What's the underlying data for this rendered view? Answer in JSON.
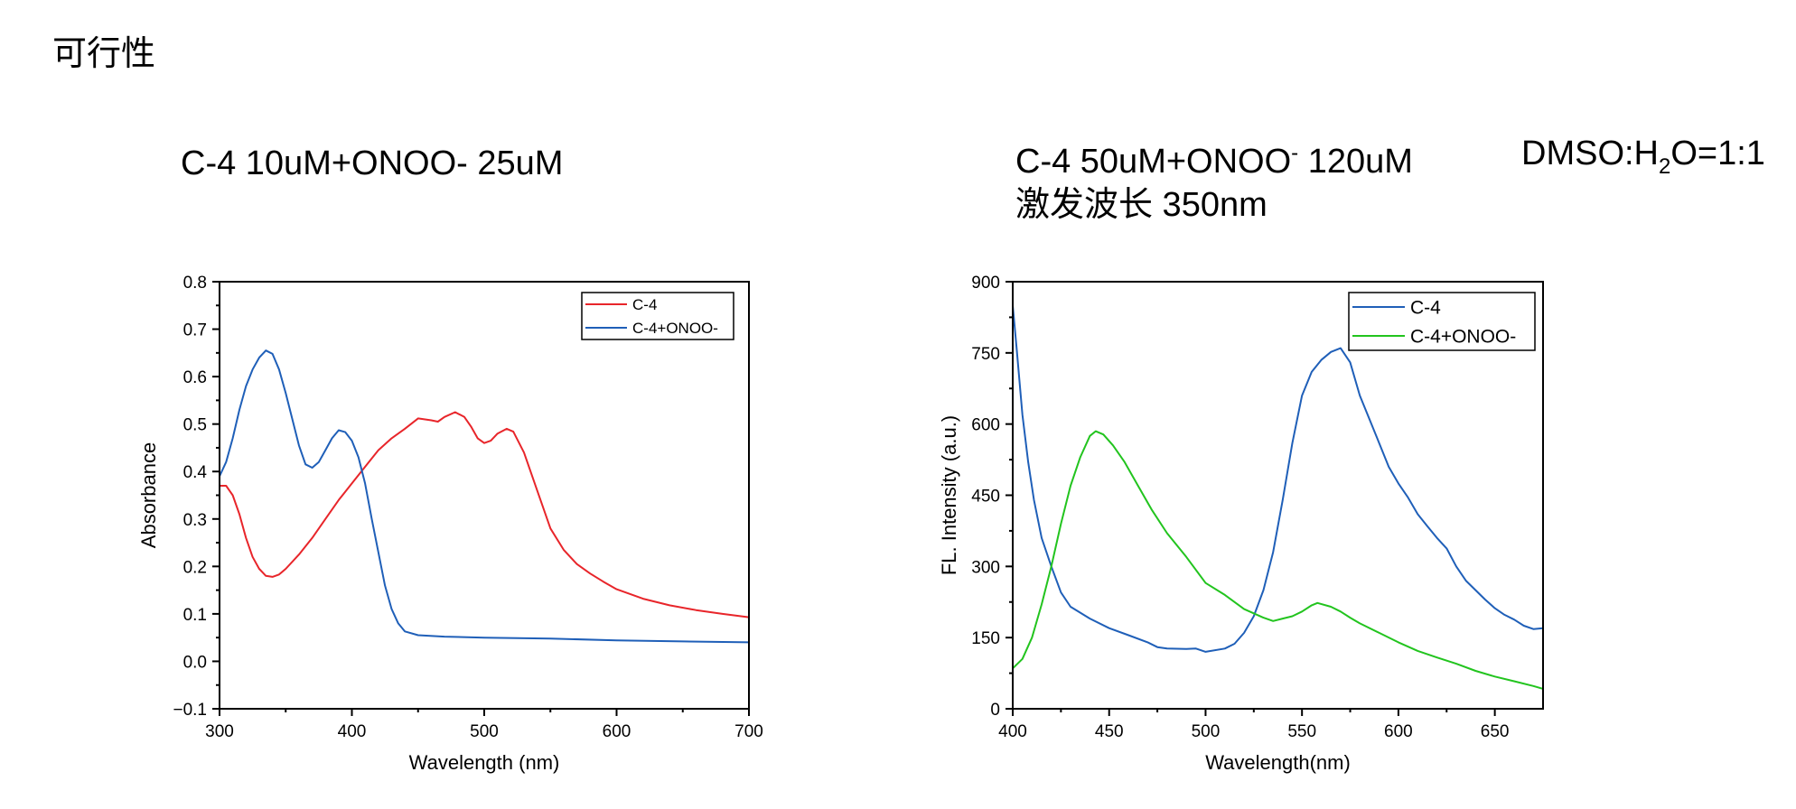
{
  "page": {
    "title": "可行性",
    "left_heading": "C-4 10uM+ONOO- 25uM",
    "right_heading": {
      "part1": "C-4 50uM+ONOO",
      "sup": "-",
      "part2": " 120uM",
      "line2": "激发波长 350nm"
    },
    "solvent": {
      "prefix": "DMSO:H",
      "sub": "2",
      "suffix": "O=1:1"
    }
  },
  "colors": {
    "red": "#e8252a",
    "blue": "#1f5fb8",
    "green": "#22c41e"
  },
  "chart_data": [
    {
      "type": "line",
      "xlabel": "Wavelength (nm)",
      "ylabel": "Absorbance",
      "xlim": [
        300,
        700
      ],
      "ylim": [
        -0.1,
        0.8
      ],
      "xticks": [
        300,
        400,
        500,
        600,
        700
      ],
      "xtick_labels": [
        "300",
        "400",
        "500",
        "600",
        "700"
      ],
      "yticks": [
        -0.1,
        0.0,
        0.1,
        0.2,
        0.3,
        0.4,
        0.5,
        0.6,
        0.7,
        0.8
      ],
      "ytick_labels": [
        "−0.1",
        "0.0",
        "0.1",
        "0.2",
        "0.3",
        "0.4",
        "0.5",
        "0.6",
        "0.7",
        "0.8"
      ],
      "legend_position": "top-right",
      "series": [
        {
          "name": "C-4",
          "color": "#e8252a",
          "points": [
            [
              300,
              0.37
            ],
            [
              305,
              0.37
            ],
            [
              310,
              0.35
            ],
            [
              315,
              0.31
            ],
            [
              320,
              0.26
            ],
            [
              325,
              0.22
            ],
            [
              330,
              0.195
            ],
            [
              335,
              0.18
            ],
            [
              340,
              0.178
            ],
            [
              345,
              0.183
            ],
            [
              350,
              0.195
            ],
            [
              360,
              0.225
            ],
            [
              370,
              0.26
            ],
            [
              380,
              0.3
            ],
            [
              390,
              0.34
            ],
            [
              400,
              0.375
            ],
            [
              410,
              0.41
            ],
            [
              420,
              0.445
            ],
            [
              430,
              0.47
            ],
            [
              440,
              0.49
            ],
            [
              450,
              0.512
            ],
            [
              460,
              0.508
            ],
            [
              465,
              0.505
            ],
            [
              470,
              0.515
            ],
            [
              478,
              0.525
            ],
            [
              485,
              0.515
            ],
            [
              490,
              0.495
            ],
            [
              495,
              0.47
            ],
            [
              500,
              0.46
            ],
            [
              505,
              0.465
            ],
            [
              510,
              0.48
            ],
            [
              517,
              0.49
            ],
            [
              522,
              0.484
            ],
            [
              530,
              0.44
            ],
            [
              540,
              0.36
            ],
            [
              550,
              0.28
            ],
            [
              560,
              0.235
            ],
            [
              570,
              0.205
            ],
            [
              580,
              0.185
            ],
            [
              590,
              0.168
            ],
            [
              600,
              0.152
            ],
            [
              620,
              0.132
            ],
            [
              640,
              0.118
            ],
            [
              660,
              0.108
            ],
            [
              680,
              0.1
            ],
            [
              700,
              0.093
            ]
          ]
        },
        {
          "name": "C-4+ONOO-",
          "color": "#1f5fb8",
          "points": [
            [
              300,
              0.39
            ],
            [
              305,
              0.42
            ],
            [
              310,
              0.47
            ],
            [
              315,
              0.53
            ],
            [
              320,
              0.58
            ],
            [
              325,
              0.615
            ],
            [
              330,
              0.64
            ],
            [
              335,
              0.655
            ],
            [
              340,
              0.648
            ],
            [
              345,
              0.615
            ],
            [
              350,
              0.565
            ],
            [
              355,
              0.51
            ],
            [
              360,
              0.455
            ],
            [
              365,
              0.415
            ],
            [
              370,
              0.408
            ],
            [
              375,
              0.42
            ],
            [
              380,
              0.445
            ],
            [
              385,
              0.47
            ],
            [
              390,
              0.487
            ],
            [
              395,
              0.483
            ],
            [
              400,
              0.465
            ],
            [
              405,
              0.43
            ],
            [
              410,
              0.375
            ],
            [
              415,
              0.3
            ],
            [
              420,
              0.23
            ],
            [
              425,
              0.16
            ],
            [
              430,
              0.11
            ],
            [
              435,
              0.08
            ],
            [
              440,
              0.063
            ],
            [
              450,
              0.055
            ],
            [
              470,
              0.052
            ],
            [
              500,
              0.05
            ],
            [
              550,
              0.048
            ],
            [
              600,
              0.044
            ],
            [
              650,
              0.042
            ],
            [
              700,
              0.04
            ]
          ]
        }
      ]
    },
    {
      "type": "line",
      "xlabel": "Wavelength(nm)",
      "ylabel": "FL. Intensity (a.u.)",
      "xlim": [
        400,
        675
      ],
      "ylim": [
        0,
        900
      ],
      "xticks": [
        400,
        450,
        500,
        550,
        600,
        650
      ],
      "xtick_labels": [
        "400",
        "450",
        "500",
        "550",
        "600",
        "650"
      ],
      "yticks": [
        0,
        150,
        300,
        450,
        600,
        750,
        900
      ],
      "ytick_labels": [
        "0",
        "150",
        "300",
        "450",
        "600",
        "750",
        "900"
      ],
      "legend_position": "top-right",
      "series": [
        {
          "name": "C-4",
          "color": "#1f5fb8",
          "points": [
            [
              400,
              850
            ],
            [
              402,
              760
            ],
            [
              405,
              620
            ],
            [
              408,
              520
            ],
            [
              411,
              440
            ],
            [
              415,
              360
            ],
            [
              420,
              300
            ],
            [
              425,
              245
            ],
            [
              430,
              215
            ],
            [
              440,
              190
            ],
            [
              450,
              170
            ],
            [
              460,
              155
            ],
            [
              470,
              140
            ],
            [
              475,
              130
            ],
            [
              480,
              127
            ],
            [
              490,
              126
            ],
            [
              495,
              127
            ],
            [
              500,
              120
            ],
            [
              510,
              127
            ],
            [
              515,
              137
            ],
            [
              520,
              160
            ],
            [
              525,
              195
            ],
            [
              530,
              250
            ],
            [
              535,
              330
            ],
            [
              540,
              440
            ],
            [
              545,
              560
            ],
            [
              550,
              660
            ],
            [
              555,
              710
            ],
            [
              560,
              735
            ],
            [
              565,
              752
            ],
            [
              570,
              760
            ],
            [
              575,
              730
            ],
            [
              580,
              660
            ],
            [
              585,
              610
            ],
            [
              590,
              560
            ],
            [
              595,
              510
            ],
            [
              600,
              475
            ],
            [
              605,
              445
            ],
            [
              610,
              410
            ],
            [
              615,
              385
            ],
            [
              620,
              360
            ],
            [
              625,
              338
            ],
            [
              630,
              300
            ],
            [
              635,
              270
            ],
            [
              640,
              250
            ],
            [
              645,
              230
            ],
            [
              650,
              212
            ],
            [
              655,
              198
            ],
            [
              660,
              188
            ],
            [
              665,
              175
            ],
            [
              670,
              168
            ],
            [
              675,
              170
            ]
          ]
        },
        {
          "name": "C-4+ONOO-",
          "color": "#22c41e",
          "points": [
            [
              400,
              85
            ],
            [
              405,
              105
            ],
            [
              410,
              150
            ],
            [
              415,
              220
            ],
            [
              420,
              300
            ],
            [
              425,
              390
            ],
            [
              430,
              470
            ],
            [
              435,
              530
            ],
            [
              440,
              575
            ],
            [
              443,
              585
            ],
            [
              447,
              578
            ],
            [
              452,
              555
            ],
            [
              458,
              520
            ],
            [
              465,
              470
            ],
            [
              472,
              420
            ],
            [
              480,
              370
            ],
            [
              490,
              320
            ],
            [
              500,
              265
            ],
            [
              510,
              240
            ],
            [
              520,
              210
            ],
            [
              530,
              192
            ],
            [
              535,
              185
            ],
            [
              540,
              190
            ],
            [
              545,
              195
            ],
            [
              550,
              205
            ],
            [
              555,
              218
            ],
            [
              558,
              223
            ],
            [
              565,
              215
            ],
            [
              570,
              205
            ],
            [
              575,
              192
            ],
            [
              580,
              180
            ],
            [
              590,
              160
            ],
            [
              600,
              140
            ],
            [
              610,
              122
            ],
            [
              620,
              108
            ],
            [
              630,
              95
            ],
            [
              640,
              80
            ],
            [
              650,
              68
            ],
            [
              660,
              58
            ],
            [
              670,
              48
            ],
            [
              675,
              42
            ]
          ]
        }
      ]
    }
  ]
}
